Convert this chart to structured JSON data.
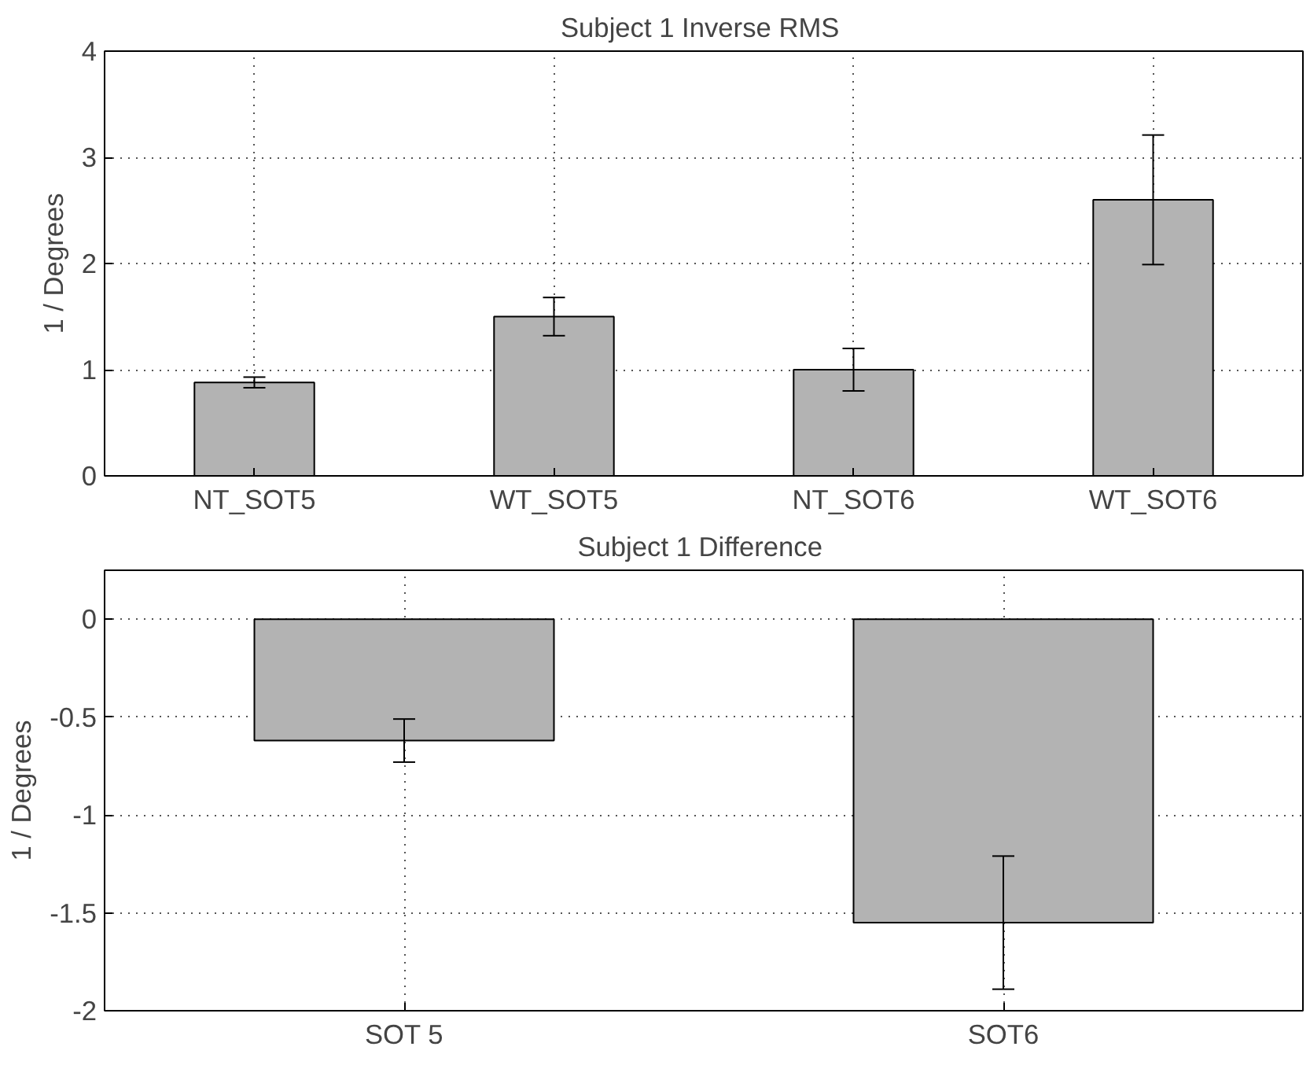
{
  "chart_data": [
    {
      "type": "bar",
      "title": "Subject 1  Inverse RMS",
      "ylabel": "1 / Degrees",
      "categories": [
        "NT_SOT5",
        "WT_SOT5",
        "NT_SOT6",
        "WT_SOT6"
      ],
      "values": [
        0.88,
        1.5,
        1.0,
        2.6
      ],
      "errors": [
        0.05,
        0.18,
        0.2,
        0.61
      ],
      "color": "#b3b3b3",
      "ylim": [
        0,
        4
      ],
      "yticks": [
        0,
        1,
        2,
        3,
        4
      ],
      "grid": true
    },
    {
      "type": "bar",
      "title": "Subject 1  Difference",
      "ylabel": "1 / Degrees",
      "categories": [
        "SOT 5",
        "SOT6"
      ],
      "values": [
        -0.62,
        -1.55
      ],
      "errors": [
        0.11,
        0.34
      ],
      "color": "#b3b3b3",
      "ylim": [
        -2,
        0.25
      ],
      "yticks": [
        -2,
        -1.5,
        -1,
        -0.5,
        0
      ],
      "grid": true
    }
  ]
}
